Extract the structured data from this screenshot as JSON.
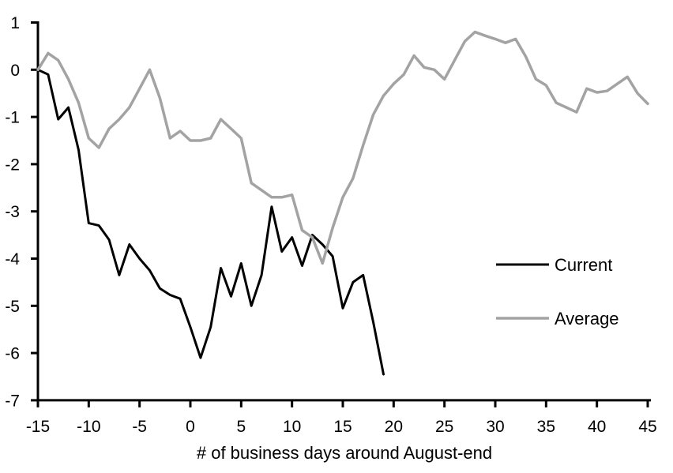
{
  "chart_data": {
    "type": "line",
    "title": "",
    "xlabel": "# of business days around August-end",
    "ylabel": "",
    "xlim": [
      -15,
      45
    ],
    "ylim": [
      -7,
      1
    ],
    "x_ticks": [
      -15,
      -10,
      -5,
      0,
      5,
      10,
      15,
      20,
      25,
      30,
      35,
      40,
      45
    ],
    "y_ticks": [
      1,
      0,
      -1,
      -2,
      -3,
      -4,
      -5,
      -6,
      -7
    ],
    "grid": false,
    "legend_position": "right-middle",
    "series": [
      {
        "name": "Current",
        "color": "#000000",
        "x": [
          -15,
          -14,
          -13,
          -12,
          -11,
          -10,
          -9,
          -8,
          -7,
          -6,
          -5,
          -4,
          -3,
          -2,
          -1,
          0,
          1,
          2,
          3,
          4,
          5,
          6,
          7,
          8,
          9,
          10,
          11,
          12,
          13,
          14,
          15,
          16,
          17,
          18,
          19
        ],
        "values": [
          0,
          -0.1,
          -1.05,
          -0.8,
          -1.7,
          -3.25,
          -3.3,
          -3.6,
          -4.35,
          -3.7,
          -4,
          -4.25,
          -4.63,
          -4.77,
          -4.85,
          -5.45,
          -6.1,
          -5.45,
          -4.2,
          -4.8,
          -4.1,
          -5,
          -4.35,
          -2.9,
          -3.85,
          -3.55,
          -4.15,
          -3.5,
          -3.7,
          -3.95,
          -5.05,
          -4.5,
          -4.35,
          -5.35,
          -6.45
        ]
      },
      {
        "name": "Average",
        "color": "#a3a3a3",
        "x": [
          -15,
          -14,
          -13,
          -12,
          -11,
          -10,
          -9,
          -8,
          -7,
          -6,
          -5,
          -4,
          -3,
          -2,
          -1,
          0,
          1,
          2,
          3,
          4,
          5,
          6,
          7,
          8,
          9,
          10,
          11,
          12,
          13,
          14,
          15,
          16,
          17,
          18,
          19,
          20,
          21,
          22,
          23,
          24,
          25,
          26,
          27,
          28,
          29,
          30,
          31,
          32,
          33,
          34,
          35,
          36,
          37,
          38,
          39,
          40,
          41,
          42,
          43,
          44,
          45
        ],
        "values": [
          0,
          0.35,
          0.2,
          -0.2,
          -0.7,
          -1.45,
          -1.65,
          -1.25,
          -1.05,
          -0.8,
          -0.4,
          0,
          -0.6,
          -1.45,
          -1.3,
          -1.5,
          -1.5,
          -1.45,
          -1.05,
          -1.25,
          -1.45,
          -2.4,
          -2.55,
          -2.7,
          -2.7,
          -2.65,
          -3.4,
          -3.55,
          -4.1,
          -3.35,
          -2.7,
          -2.3,
          -1.6,
          -0.95,
          -0.55,
          -0.3,
          -0.1,
          0.3,
          0.05,
          0,
          -0.2,
          0.2,
          0.6,
          0.8,
          0.72,
          0.65,
          0.57,
          0.65,
          0.28,
          -0.2,
          -0.33,
          -0.7,
          -0.8,
          -0.9,
          -0.4,
          -0.48,
          -0.45,
          -0.3,
          -0.15,
          -0.5,
          -0.72
        ]
      }
    ]
  },
  "colors": {
    "axis": "#000000",
    "background": "#ffffff",
    "text": "#000000"
  }
}
